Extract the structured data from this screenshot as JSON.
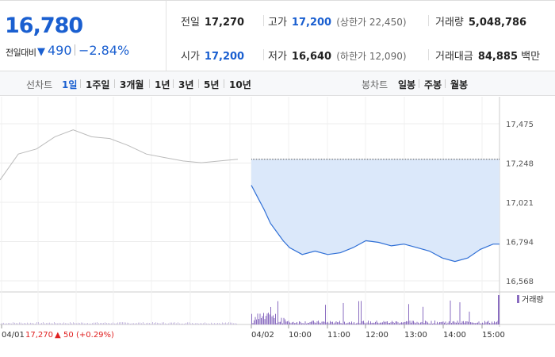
{
  "quote": {
    "price": "16,780",
    "change_label": "전일대비",
    "change_arrow": "▼",
    "change_value": "490",
    "change_rate": "−2.84%",
    "prev_close": {
      "label": "전일",
      "value": "17,270"
    },
    "open": {
      "label": "시가",
      "value": "17,200"
    },
    "high": {
      "label": "고가",
      "value": "17,200",
      "sub": "(상한가 22,450)"
    },
    "low": {
      "label": "저가",
      "value": "16,640",
      "sub": "(하한가 12,090)"
    },
    "volume": {
      "label": "거래량",
      "value": "5,048,786"
    },
    "amount": {
      "label": "거래대금",
      "value": "84,885",
      "unit": "백만"
    }
  },
  "tabs": {
    "line_label": "선차트",
    "line": [
      "1일",
      "1주일",
      "3개월",
      "1년",
      "3년",
      "5년",
      "10년"
    ],
    "candle_label": "봉차트",
    "candle": [
      "일봉",
      "주봉",
      "월봉"
    ],
    "active": "1일"
  },
  "chart_data": {
    "type": "line",
    "series": [
      {
        "name": "04/01",
        "x": [
          "09:00",
          "09:30",
          "10:00",
          "10:30",
          "11:00",
          "11:30",
          "12:00",
          "12:30",
          "13:00",
          "13:30",
          "14:00",
          "14:30",
          "15:00",
          "15:30"
        ],
        "y": [
          17150,
          17300,
          17330,
          17400,
          17440,
          17400,
          17390,
          17350,
          17300,
          17280,
          17260,
          17250,
          17260,
          17270
        ]
      },
      {
        "name": "04/02",
        "x": [
          "09:00",
          "09:10",
          "09:20",
          "09:30",
          "09:40",
          "09:50",
          "10:00",
          "10:20",
          "10:40",
          "11:00",
          "11:20",
          "11:40",
          "12:00",
          "12:20",
          "12:40",
          "13:00",
          "13:20",
          "13:40",
          "14:00",
          "14:20",
          "14:40",
          "15:00",
          "15:20",
          "15:30"
        ],
        "y": [
          17120,
          17050,
          16980,
          16900,
          16850,
          16800,
          16760,
          16720,
          16740,
          16720,
          16730,
          16760,
          16800,
          16790,
          16770,
          16780,
          16760,
          16740,
          16700,
          16680,
          16700,
          16750,
          16780,
          16780
        ]
      }
    ],
    "reference": {
      "label": "전일",
      "value": 17270
    },
    "y_ticks": [
      "17,475",
      "17,248",
      "17,021",
      "16,794",
      "16,568"
    ],
    "ylim": [
      16568,
      17475
    ],
    "x_ticks": [
      "04/01",
      "04/02",
      "10:00",
      "11:00",
      "12:00",
      "13:00",
      "14:00",
      "15:00"
    ],
    "prev_day_note": {
      "date": "04/01",
      "price": "17,270",
      "arrow": "▲",
      "change": "50",
      "rate": "(+0.29%)"
    },
    "volume_legend": "거래량",
    "colors": {
      "prev_line": "#bbbbbb",
      "today_line": "#2f6fd6",
      "fill": "#dbe8fa",
      "volume": "#8a6cc0"
    }
  }
}
